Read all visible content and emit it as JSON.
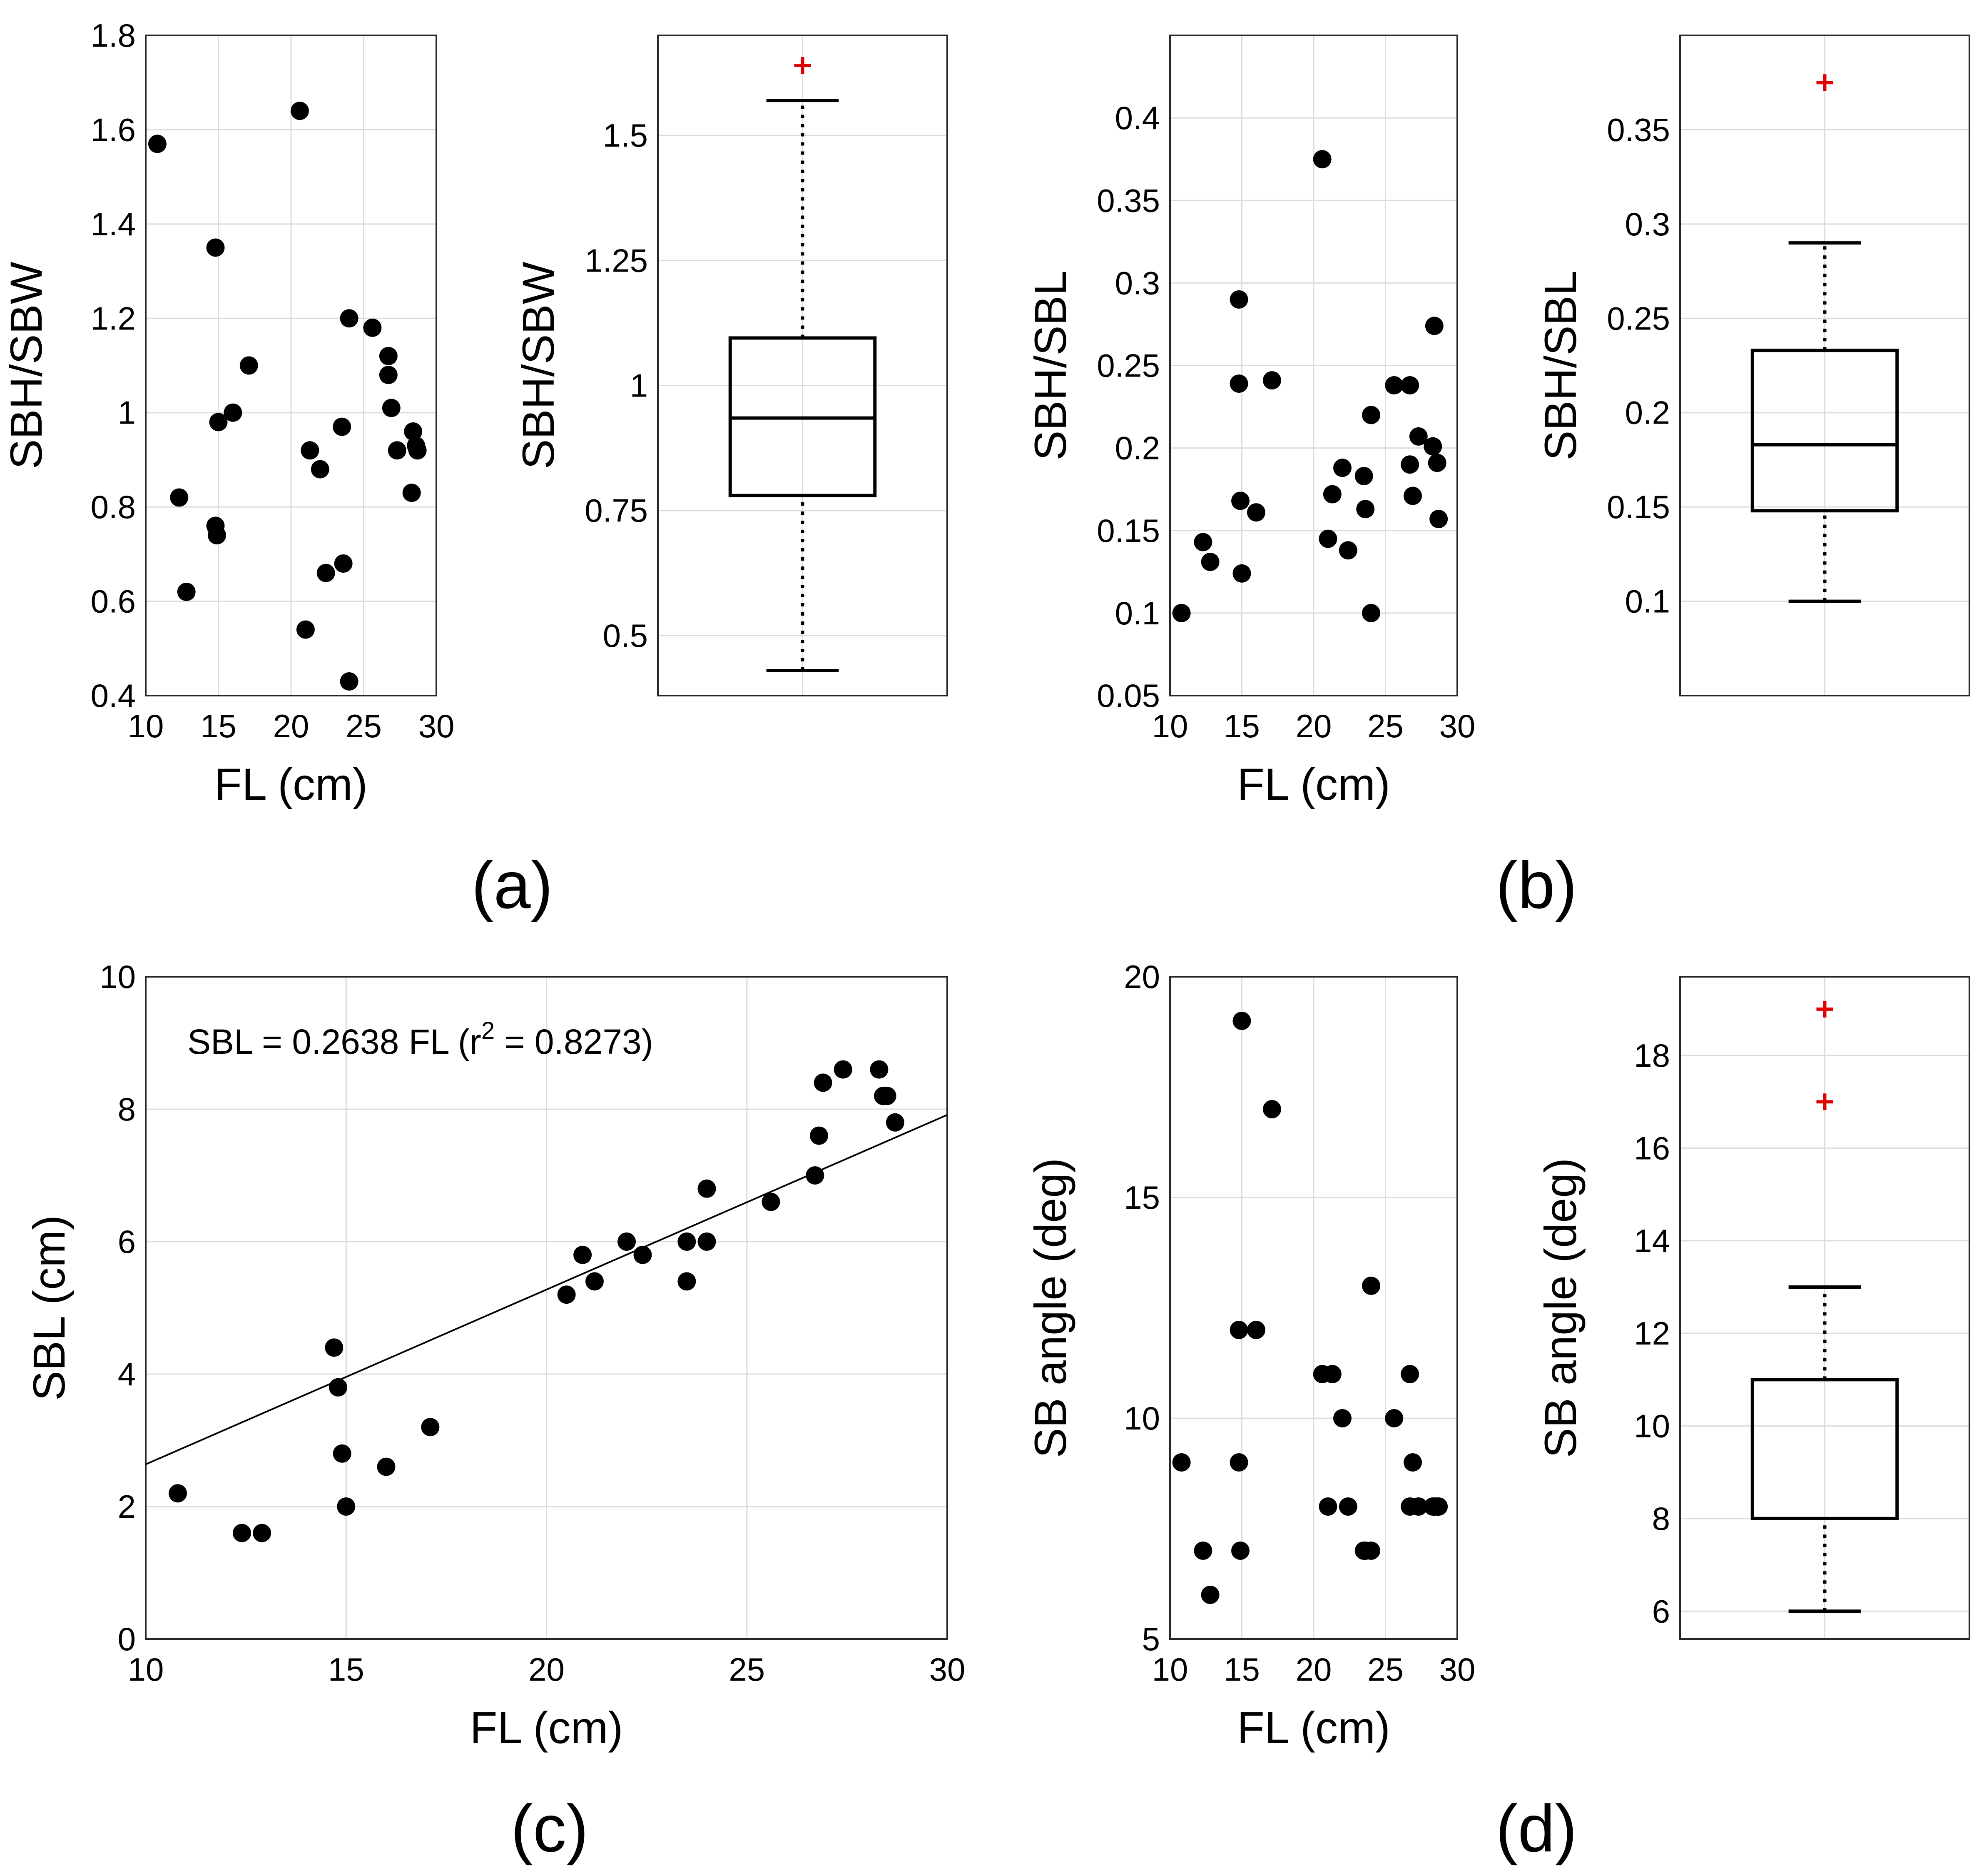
{
  "chart_data": [
    {
      "id": "a_scatter",
      "type": "scatter",
      "xlabel": "FL (cm)",
      "ylabel": "SBH/SBW",
      "xlim": [
        10,
        30
      ],
      "ylim": [
        0.4,
        1.8
      ],
      "xticks": [
        10,
        15,
        20,
        25,
        30
      ],
      "yticks": [
        0.4,
        0.6,
        0.8,
        1,
        1.2,
        1.4,
        1.6,
        1.8
      ],
      "x": [
        10.8,
        12.3,
        12.8,
        14.8,
        14.8,
        14.9,
        15.0,
        16.0,
        17.1,
        20.6,
        21.0,
        21.3,
        22.0,
        22.4,
        23.5,
        23.6,
        24.0,
        24.0,
        25.6,
        26.7,
        26.7,
        26.9,
        27.3,
        28.3,
        28.4,
        28.6,
        28.7
      ],
      "y": [
        1.57,
        0.82,
        0.62,
        1.35,
        0.76,
        0.74,
        0.98,
        1.0,
        1.1,
        1.64,
        0.54,
        0.92,
        0.88,
        0.66,
        0.97,
        0.68,
        1.2,
        0.43,
        1.18,
        1.08,
        1.12,
        1.01,
        0.92,
        0.83,
        0.96,
        0.93,
        0.92
      ]
    },
    {
      "id": "a_box",
      "type": "box",
      "ylabel": "SBH/SBW",
      "ylim": [
        0.38,
        1.7
      ],
      "yticks": [
        0.5,
        0.75,
        1,
        1.25,
        1.5
      ],
      "ytick_labels": [
        "0.5",
        "0.75",
        "1",
        "1.25",
        "1.5"
      ],
      "whisker_low": 0.43,
      "q1": 0.78,
      "median": 0.935,
      "q3": 1.095,
      "whisker_high": 1.57,
      "outliers": [
        1.64
      ]
    },
    {
      "id": "b_scatter",
      "type": "scatter",
      "xlabel": "FL (cm)",
      "ylabel": "SBH/SBL",
      "xlim": [
        10,
        30
      ],
      "ylim": [
        0.05,
        0.45
      ],
      "xticks": [
        10,
        15,
        20,
        25,
        30
      ],
      "yticks": [
        0.05,
        0.1,
        0.15,
        0.2,
        0.25,
        0.3,
        0.35,
        0.4
      ],
      "x": [
        10.8,
        12.3,
        12.8,
        14.8,
        14.8,
        14.9,
        15.0,
        16.0,
        17.1,
        20.6,
        21.0,
        21.3,
        22.0,
        22.4,
        23.5,
        23.6,
        24.0,
        24.0,
        25.6,
        26.7,
        26.7,
        26.9,
        27.3,
        28.3,
        28.4,
        28.6,
        28.7
      ],
      "y": [
        0.1,
        0.143,
        0.131,
        0.29,
        0.239,
        0.168,
        0.124,
        0.161,
        0.241,
        0.375,
        0.145,
        0.172,
        0.188,
        0.138,
        0.183,
        0.163,
        0.22,
        0.1,
        0.238,
        0.19,
        0.238,
        0.171,
        0.207,
        0.201,
        0.274,
        0.191,
        0.157
      ]
    },
    {
      "id": "b_box",
      "type": "box",
      "ylabel": "SBH/SBL",
      "ylim": [
        0.05,
        0.4
      ],
      "yticks": [
        0.1,
        0.15,
        0.2,
        0.25,
        0.3,
        0.35
      ],
      "ytick_labels": [
        "0.1",
        "0.15",
        "0.2",
        "0.25",
        "0.3",
        "0.35"
      ],
      "whisker_low": 0.1,
      "q1": 0.148,
      "median": 0.183,
      "q3": 0.233,
      "whisker_high": 0.29,
      "outliers": [
        0.375
      ]
    },
    {
      "id": "c_scatter",
      "type": "scatter",
      "xlabel": "FL (cm)",
      "ylabel": "SBL (cm)",
      "xlim": [
        10,
        30
      ],
      "ylim": [
        0,
        10
      ],
      "xticks": [
        10,
        15,
        20,
        25,
        30
      ],
      "yticks": [
        0,
        2,
        4,
        6,
        8,
        10
      ],
      "x": [
        10.8,
        12.4,
        12.9,
        14.7,
        14.8,
        14.9,
        15.0,
        16.0,
        17.1,
        20.5,
        20.9,
        21.2,
        22.0,
        22.4,
        23.5,
        23.5,
        24.0,
        24.0,
        25.6,
        26.7,
        26.8,
        26.9,
        27.4,
        28.3,
        28.4,
        28.5,
        28.7
      ],
      "y": [
        2.2,
        1.6,
        1.6,
        4.4,
        3.8,
        2.8,
        2.0,
        2.6,
        3.2,
        5.2,
        5.8,
        5.4,
        6.0,
        5.8,
        6.0,
        5.4,
        6.8,
        6.0,
        6.6,
        7.0,
        7.6,
        8.4,
        8.6,
        8.6,
        8.2,
        8.2,
        7.8
      ],
      "fit_slope": 0.2638,
      "annotation_prefix": "SBL = 0.2638 FL (r",
      "annotation_sup": "2",
      "annotation_suffix": " = 0.8273)"
    },
    {
      "id": "d_scatter",
      "type": "scatter",
      "xlabel": "FL (cm)",
      "ylabel": "SB angle (deg)",
      "xlim": [
        10,
        30
      ],
      "ylim": [
        5,
        20
      ],
      "xticks": [
        10,
        15,
        20,
        25,
        30
      ],
      "yticks": [
        5,
        10,
        15,
        20
      ],
      "x": [
        10.8,
        12.3,
        12.8,
        14.8,
        14.8,
        14.9,
        15.0,
        16.0,
        17.1,
        20.6,
        21.0,
        21.3,
        22.0,
        22.4,
        23.5,
        23.6,
        24.0,
        24.0,
        25.6,
        26.7,
        26.7,
        26.9,
        27.3,
        28.3,
        28.4,
        28.6,
        28.7
      ],
      "y": [
        9,
        7,
        6,
        12,
        9,
        7,
        19,
        12,
        17,
        11,
        8,
        11,
        10,
        8,
        7,
        7,
        13,
        7,
        10,
        11,
        8,
        9,
        8,
        8,
        8,
        8,
        8
      ]
    },
    {
      "id": "d_box",
      "type": "box",
      "ylabel": "SB angle (deg)",
      "ylim": [
        5.4,
        19.7
      ],
      "yticks": [
        6,
        8,
        10,
        12,
        14,
        16,
        18
      ],
      "ytick_labels": [
        "6",
        "8",
        "10",
        "12",
        "14",
        "16",
        "18"
      ],
      "whisker_low": 6,
      "q1": 8,
      "median": 8,
      "q3": 11,
      "whisker_high": 13,
      "outliers": [
        17,
        19
      ]
    }
  ],
  "panel_labels": {
    "a": "(a)",
    "b": "(b)",
    "c": "(c)",
    "d": "(d)"
  }
}
